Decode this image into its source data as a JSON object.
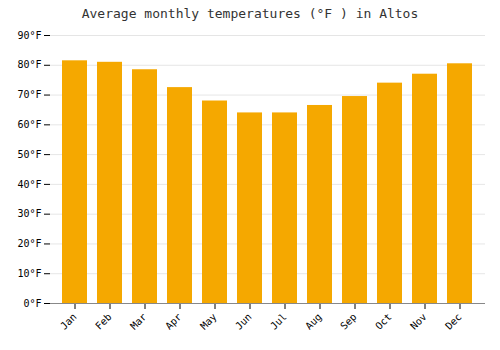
{
  "chart_data": {
    "type": "bar",
    "title": "Average monthly temperatures (°F ) in Altos",
    "categories": [
      "Jan",
      "Feb",
      "Mar",
      "Apr",
      "May",
      "Jun",
      "Jul",
      "Aug",
      "Sep",
      "Oct",
      "Nov",
      "Dec"
    ],
    "values": [
      81.5,
      81.0,
      78.5,
      72.5,
      68.0,
      64.0,
      64.0,
      66.5,
      69.5,
      74.0,
      77.0,
      80.5
    ],
    "color": "#F5A800",
    "ylim": [
      0,
      90
    ],
    "yticks": [
      {
        "value": 0,
        "label": "0°F"
      },
      {
        "value": 10,
        "label": "10°F"
      },
      {
        "value": 20,
        "label": "20°F"
      },
      {
        "value": 30,
        "label": "30°F"
      },
      {
        "value": 40,
        "label": "40°F"
      },
      {
        "value": 50,
        "label": "50°F"
      },
      {
        "value": 60,
        "label": "60°F"
      },
      {
        "value": 70,
        "label": "70°F"
      },
      {
        "value": 80,
        "label": "80°F"
      },
      {
        "value": 90,
        "label": "90°F"
      }
    ],
    "grid": true
  }
}
